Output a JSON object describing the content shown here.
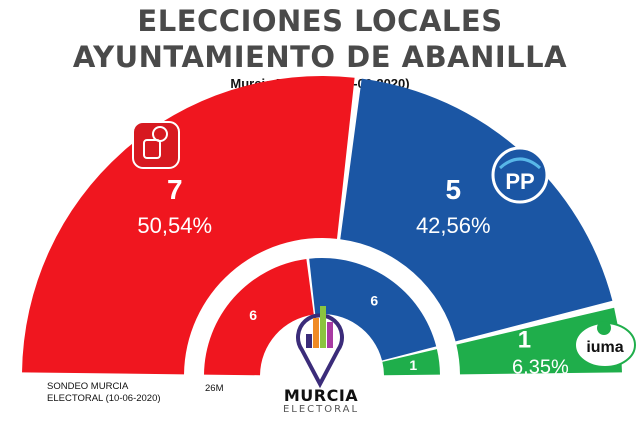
{
  "header": {
    "title_line1": "ELECCIONES LOCALES",
    "title_line2": "AYUNTAMIENTO DE ABANILLA",
    "subtitle": "Murcia Electoral (10-06-2020)"
  },
  "notes": {
    "source_line1": "SONDEO MURCIA",
    "source_line2": "ELECTORAL (10-06-2020)",
    "previous_label": "26M"
  },
  "logo": {
    "main": "MURCIA",
    "sub": "ELECTORAL"
  },
  "chart_data": {
    "type": "pie",
    "subtype": "parliament-semicircle",
    "total_seats": 13,
    "series": [
      {
        "name": "Sondeo Murcia Electoral (10-06-2020)",
        "ring": "outer",
        "parties": [
          {
            "party": "PSOE",
            "seats": 7,
            "seats_label": "7",
            "percent": 50.54,
            "percent_label": "50,54%",
            "color": "#f0161f",
            "icon": "psoe-rose-logo-icon"
          },
          {
            "party": "PP",
            "seats": 5,
            "seats_label": "5",
            "percent": 42.56,
            "percent_label": "42,56%",
            "color": "#1b56a4",
            "icon": "pp-logo-icon"
          },
          {
            "party": "IUMA",
            "seats": 1,
            "seats_label": "1",
            "percent": 6.35,
            "percent_label": "6,35%",
            "color": "#1fae4b",
            "icon": "iuma-logo-icon"
          }
        ]
      },
      {
        "name": "26M",
        "ring": "inner",
        "parties": [
          {
            "party": "PSOE",
            "seats": 6,
            "seats_label": "6",
            "color": "#f0161f"
          },
          {
            "party": "PP",
            "seats": 6,
            "seats_label": "6",
            "color": "#1b56a4"
          },
          {
            "party": "IUMA",
            "seats": 1,
            "seats_label": "1",
            "color": "#1fae4b"
          }
        ]
      }
    ]
  }
}
